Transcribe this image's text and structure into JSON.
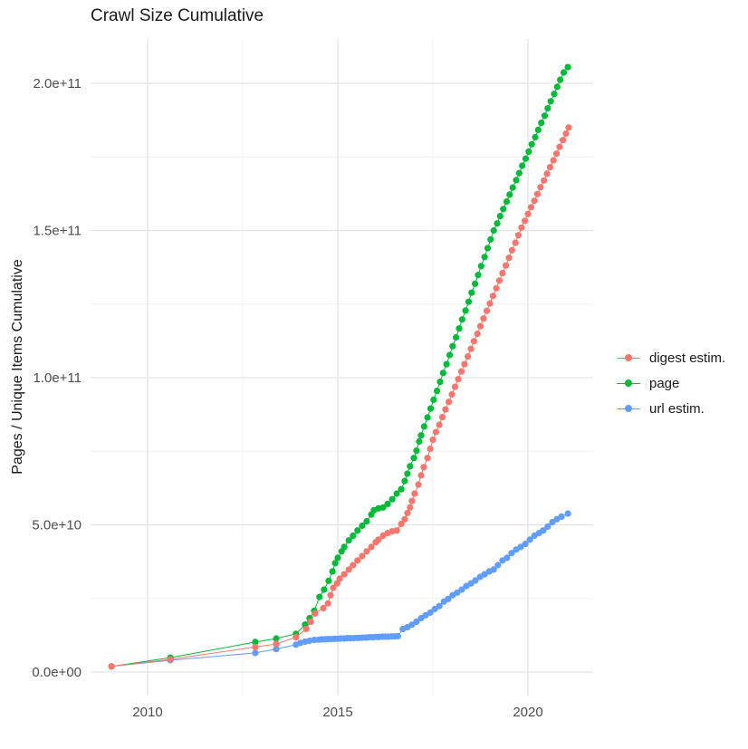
{
  "title": "Crawl Size Cumulative",
  "y_axis_title": "Pages / Unique Items Cumulative",
  "chart_data": {
    "type": "line",
    "title": "Crawl Size Cumulative",
    "xlabel": "",
    "ylabel": "Pages / Unique Items Cumulative",
    "value_unit": "billions (1e9)",
    "xlim": [
      2008.55,
      2021.72
    ],
    "ylim_billions": [
      -8,
      215
    ],
    "grid": true,
    "legend_position": "right",
    "x_ticks": [
      {
        "value": 2010,
        "label": "2010"
      },
      {
        "value": 2015,
        "label": "2015"
      },
      {
        "value": 2020,
        "label": "2020"
      }
    ],
    "x_minor_ticks": [
      2012.5,
      2017.5
    ],
    "y_ticks": [
      {
        "value_billions": 0,
        "label": "0.0e+00"
      },
      {
        "value_billions": 50,
        "label": "5.0e+10"
      },
      {
        "value_billions": 100,
        "label": "1.0e+11"
      },
      {
        "value_billions": 150,
        "label": "1.5e+11"
      },
      {
        "value_billions": 200,
        "label": "2.0e+11"
      }
    ],
    "y_minor_ticks_billions": [
      25,
      75,
      125,
      175
    ],
    "grid_major_color": "#e3e3e3",
    "grid_minor_color": "#f0f0f0",
    "series": [
      {
        "name": "digest estim.",
        "color": "#F8766D",
        "z": 3,
        "points": [
          [
            2009.05,
            1.9
          ],
          [
            2010.6,
            4.3
          ],
          [
            2012.83,
            8.5
          ],
          [
            2013.38,
            9.5
          ],
          [
            2013.9,
            11.8
          ],
          [
            2014.17,
            14.6
          ],
          [
            2014.29,
            17.1
          ],
          [
            2014.4,
            19.9
          ],
          [
            2014.62,
            21.7
          ],
          [
            2014.74,
            23.3
          ],
          [
            2014.81,
            26.1
          ],
          [
            2014.88,
            28.6
          ],
          [
            2014.98,
            30.1
          ],
          [
            2015.05,
            31.7
          ],
          [
            2015.17,
            33.2
          ],
          [
            2015.29,
            34.8
          ],
          [
            2015.4,
            36.3
          ],
          [
            2015.52,
            37.9
          ],
          [
            2015.64,
            39.4
          ],
          [
            2015.76,
            41.0
          ],
          [
            2015.88,
            42.5
          ],
          [
            2016.0,
            44.1
          ],
          [
            2016.07,
            45.0
          ],
          [
            2016.19,
            46.3
          ],
          [
            2016.31,
            47.2
          ],
          [
            2016.43,
            47.8
          ],
          [
            2016.55,
            48.1
          ],
          [
            2016.67,
            50.3
          ],
          [
            2016.76,
            51.9
          ],
          [
            2016.83,
            54.0
          ],
          [
            2016.9,
            55.9
          ],
          [
            2016.95,
            58.1
          ],
          [
            2017.02,
            60.6
          ],
          [
            2017.12,
            63.7
          ],
          [
            2017.19,
            66.8
          ],
          [
            2017.26,
            69.6
          ],
          [
            2017.36,
            72.7
          ],
          [
            2017.43,
            75.8
          ],
          [
            2017.5,
            78.9
          ],
          [
            2017.58,
            81.5
          ],
          [
            2017.67,
            84.0
          ],
          [
            2017.75,
            86.6
          ],
          [
            2017.83,
            89.2
          ],
          [
            2017.92,
            91.8
          ],
          [
            2018.0,
            94.3
          ],
          [
            2018.08,
            96.9
          ],
          [
            2018.17,
            99.5
          ],
          [
            2018.25,
            102.1
          ],
          [
            2018.33,
            104.6
          ],
          [
            2018.42,
            107.2
          ],
          [
            2018.5,
            109.8
          ],
          [
            2018.58,
            112.4
          ],
          [
            2018.67,
            114.9
          ],
          [
            2018.75,
            117.5
          ],
          [
            2018.83,
            120.1
          ],
          [
            2018.92,
            122.7
          ],
          [
            2019.0,
            125.2
          ],
          [
            2019.08,
            127.8
          ],
          [
            2019.17,
            130.4
          ],
          [
            2019.25,
            133.0
          ],
          [
            2019.33,
            135.5
          ],
          [
            2019.42,
            138.1
          ],
          [
            2019.5,
            140.7
          ],
          [
            2019.58,
            143.3
          ],
          [
            2019.67,
            145.8
          ],
          [
            2019.75,
            148.4
          ],
          [
            2019.83,
            151.0
          ],
          [
            2019.92,
            153.3
          ],
          [
            2020.0,
            155.6
          ],
          [
            2020.08,
            157.9
          ],
          [
            2020.17,
            160.1
          ],
          [
            2020.25,
            162.4
          ],
          [
            2020.33,
            164.7
          ],
          [
            2020.42,
            167.0
          ],
          [
            2020.5,
            169.3
          ],
          [
            2020.58,
            171.5
          ],
          [
            2020.67,
            173.8
          ],
          [
            2020.75,
            176.1
          ],
          [
            2020.83,
            178.4
          ],
          [
            2020.92,
            180.7
          ],
          [
            2021.0,
            182.9
          ],
          [
            2021.07,
            185.0
          ]
        ]
      },
      {
        "name": "page",
        "color": "#00BA38",
        "z": 1,
        "points": [
          [
            2009.05,
            1.9
          ],
          [
            2010.6,
            4.9
          ],
          [
            2012.83,
            10.2
          ],
          [
            2013.38,
            11.4
          ],
          [
            2013.9,
            13.0
          ],
          [
            2014.14,
            16.1
          ],
          [
            2014.26,
            18.3
          ],
          [
            2014.38,
            20.8
          ],
          [
            2014.52,
            25.5
          ],
          [
            2014.64,
            28.0
          ],
          [
            2014.76,
            31.0
          ],
          [
            2014.86,
            34.2
          ],
          [
            2014.93,
            37.0
          ],
          [
            2015.0,
            38.8
          ],
          [
            2015.1,
            41.0
          ],
          [
            2015.17,
            42.5
          ],
          [
            2015.29,
            44.7
          ],
          [
            2015.4,
            46.3
          ],
          [
            2015.52,
            48.1
          ],
          [
            2015.64,
            49.7
          ],
          [
            2015.76,
            51.2
          ],
          [
            2015.88,
            53.5
          ],
          [
            2015.95,
            55.0
          ],
          [
            2016.07,
            55.6
          ],
          [
            2016.19,
            55.9
          ],
          [
            2016.31,
            57.1
          ],
          [
            2016.43,
            58.7
          ],
          [
            2016.55,
            60.6
          ],
          [
            2016.67,
            62.1
          ],
          [
            2016.76,
            64.9
          ],
          [
            2016.83,
            67.4
          ],
          [
            2016.9,
            69.9
          ],
          [
            2017.0,
            72.7
          ],
          [
            2017.07,
            75.2
          ],
          [
            2017.14,
            78.3
          ],
          [
            2017.19,
            80.4
          ],
          [
            2017.27,
            83.4
          ],
          [
            2017.36,
            86.5
          ],
          [
            2017.44,
            89.5
          ],
          [
            2017.52,
            92.5
          ],
          [
            2017.61,
            95.5
          ],
          [
            2017.69,
            98.6
          ],
          [
            2017.77,
            101.6
          ],
          [
            2017.86,
            104.6
          ],
          [
            2017.94,
            107.7
          ],
          [
            2018.02,
            110.7
          ],
          [
            2018.11,
            113.7
          ],
          [
            2018.19,
            116.7
          ],
          [
            2018.27,
            119.8
          ],
          [
            2018.36,
            122.8
          ],
          [
            2018.44,
            125.8
          ],
          [
            2018.52,
            128.9
          ],
          [
            2018.61,
            131.9
          ],
          [
            2018.69,
            134.9
          ],
          [
            2018.77,
            137.9
          ],
          [
            2018.86,
            141.0
          ],
          [
            2018.94,
            144.0
          ],
          [
            2019.02,
            147.0
          ],
          [
            2019.1,
            150.0
          ],
          [
            2019.19,
            152.4
          ],
          [
            2019.27,
            154.9
          ],
          [
            2019.35,
            157.3
          ],
          [
            2019.44,
            159.8
          ],
          [
            2019.52,
            162.2
          ],
          [
            2019.6,
            164.6
          ],
          [
            2019.69,
            167.1
          ],
          [
            2019.77,
            169.5
          ],
          [
            2019.85,
            172.0
          ],
          [
            2019.94,
            174.4
          ],
          [
            2020.02,
            176.8
          ],
          [
            2020.1,
            179.3
          ],
          [
            2020.19,
            181.7
          ],
          [
            2020.27,
            184.2
          ],
          [
            2020.35,
            186.6
          ],
          [
            2020.44,
            189.0
          ],
          [
            2020.52,
            191.5
          ],
          [
            2020.6,
            193.9
          ],
          [
            2020.69,
            196.4
          ],
          [
            2020.77,
            198.8
          ],
          [
            2020.85,
            201.2
          ],
          [
            2020.94,
            203.7
          ],
          [
            2021.05,
            205.5
          ]
        ]
      },
      {
        "name": "url estim.",
        "color": "#619CFF",
        "z": 2,
        "points": [
          [
            2009.05,
            1.9
          ],
          [
            2010.6,
            4.0
          ],
          [
            2012.83,
            6.5
          ],
          [
            2013.38,
            7.8
          ],
          [
            2013.9,
            9.3
          ],
          [
            2014.02,
            9.9
          ],
          [
            2014.14,
            10.3
          ],
          [
            2014.26,
            10.6
          ],
          [
            2014.38,
            10.9
          ],
          [
            2014.5,
            11.0
          ],
          [
            2014.58,
            11.1
          ],
          [
            2014.67,
            11.1
          ],
          [
            2014.75,
            11.2
          ],
          [
            2014.83,
            11.2
          ],
          [
            2014.92,
            11.3
          ],
          [
            2015.0,
            11.3
          ],
          [
            2015.08,
            11.4
          ],
          [
            2015.17,
            11.4
          ],
          [
            2015.25,
            11.5
          ],
          [
            2015.33,
            11.5
          ],
          [
            2015.42,
            11.5
          ],
          [
            2015.5,
            11.6
          ],
          [
            2015.58,
            11.6
          ],
          [
            2015.67,
            11.7
          ],
          [
            2015.75,
            11.7
          ],
          [
            2015.83,
            11.8
          ],
          [
            2015.92,
            11.8
          ],
          [
            2016.0,
            11.9
          ],
          [
            2016.08,
            11.9
          ],
          [
            2016.17,
            12.0
          ],
          [
            2016.25,
            12.0
          ],
          [
            2016.33,
            12.0
          ],
          [
            2016.42,
            12.1
          ],
          [
            2016.5,
            12.1
          ],
          [
            2016.58,
            12.2
          ],
          [
            2016.71,
            14.6
          ],
          [
            2016.83,
            15.2
          ],
          [
            2016.95,
            16.1
          ],
          [
            2017.07,
            17.1
          ],
          [
            2017.19,
            18.3
          ],
          [
            2017.31,
            19.3
          ],
          [
            2017.43,
            20.2
          ],
          [
            2017.55,
            21.4
          ],
          [
            2017.67,
            22.4
          ],
          [
            2017.79,
            23.9
          ],
          [
            2017.9,
            24.8
          ],
          [
            2018.02,
            26.1
          ],
          [
            2018.14,
            27.0
          ],
          [
            2018.26,
            28.0
          ],
          [
            2018.38,
            29.2
          ],
          [
            2018.5,
            30.1
          ],
          [
            2018.62,
            31.1
          ],
          [
            2018.74,
            32.3
          ],
          [
            2018.86,
            33.2
          ],
          [
            2018.98,
            34.2
          ],
          [
            2019.1,
            34.8
          ],
          [
            2019.21,
            36.3
          ],
          [
            2019.33,
            37.9
          ],
          [
            2019.45,
            38.8
          ],
          [
            2019.57,
            40.4
          ],
          [
            2019.69,
            41.6
          ],
          [
            2019.81,
            42.5
          ],
          [
            2019.93,
            43.5
          ],
          [
            2020.05,
            45.0
          ],
          [
            2020.17,
            46.3
          ],
          [
            2020.29,
            47.2
          ],
          [
            2020.4,
            48.1
          ],
          [
            2020.52,
            49.4
          ],
          [
            2020.64,
            50.9
          ],
          [
            2020.76,
            51.9
          ],
          [
            2020.88,
            52.8
          ],
          [
            2021.05,
            53.8
          ]
        ]
      }
    ]
  }
}
